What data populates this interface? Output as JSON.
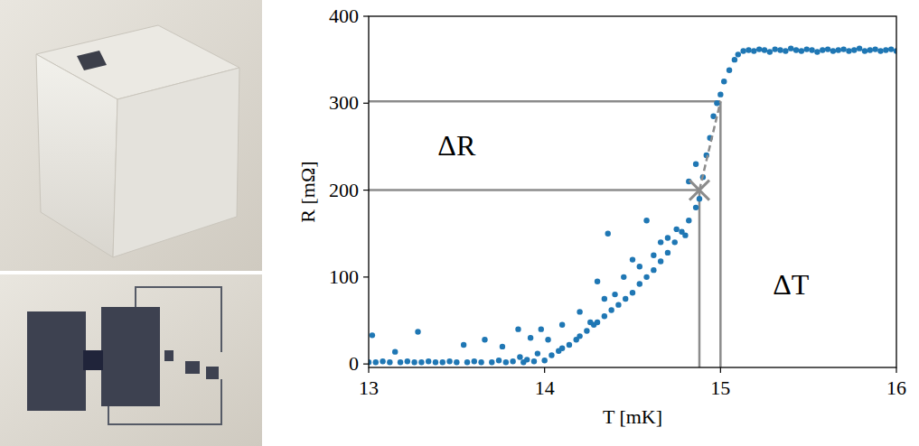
{
  "chart_data": {
    "type": "scatter",
    "x_label": "T [mK]",
    "y_label": "R [mΩ]",
    "xlim": [
      13,
      16
    ],
    "ylim": [
      -4,
      400
    ],
    "xticks": [
      13,
      14,
      15,
      16
    ],
    "yticks": [
      0,
      100,
      200,
      300,
      400
    ],
    "grid": false,
    "x": [
      13.0,
      13.02,
      13.04,
      13.08,
      13.12,
      13.15,
      13.18,
      13.22,
      13.26,
      13.28,
      13.3,
      13.34,
      13.38,
      13.42,
      13.46,
      13.5,
      13.54,
      13.56,
      13.6,
      13.64,
      13.66,
      13.7,
      13.74,
      13.76,
      13.78,
      13.82,
      13.85,
      13.86,
      13.88,
      13.9,
      13.92,
      13.94,
      13.96,
      13.98,
      14.0,
      14.02,
      14.04,
      14.08,
      14.1,
      14.14,
      14.18,
      14.2,
      14.24,
      14.28,
      14.3,
      14.34,
      14.38,
      14.42,
      14.46,
      14.5,
      14.54,
      14.58,
      14.62,
      14.66,
      14.7,
      14.74,
      14.78,
      14.82,
      14.86,
      14.1,
      14.2,
      14.26,
      14.3,
      14.34,
      14.36,
      14.4,
      14.45,
      14.5,
      14.54,
      14.58,
      14.62,
      14.66,
      14.7,
      14.75,
      14.8,
      14.82,
      14.86,
      14.88,
      14.9,
      14.92,
      14.94,
      14.96,
      14.98,
      15.0,
      15.02,
      15.05,
      15.08,
      15.1,
      15.13,
      15.16,
      15.19,
      15.22,
      15.25,
      15.28,
      15.31,
      15.34,
      15.37,
      15.4,
      15.43,
      15.46,
      15.49,
      15.52,
      15.55,
      15.58,
      15.61,
      15.64,
      15.67,
      15.7,
      15.73,
      15.76,
      15.79,
      15.82,
      15.85,
      15.88,
      15.91,
      15.94,
      15.97,
      16.0
    ],
    "series": [
      {
        "name": "R",
        "color": "#1f77b4",
        "marker": "circle",
        "values": [
          2,
          33,
          2,
          3,
          2,
          14,
          2,
          3,
          2,
          37,
          2,
          3,
          2,
          2,
          3,
          2,
          22,
          2,
          3,
          2,
          28,
          2,
          4,
          20,
          2,
          3,
          40,
          8,
          2,
          5,
          30,
          3,
          12,
          40,
          4,
          28,
          10,
          15,
          18,
          22,
          28,
          32,
          38,
          45,
          48,
          55,
          62,
          68,
          75,
          82,
          92,
          100,
          108,
          118,
          128,
          140,
          152,
          165,
          180,
          45,
          60,
          48,
          95,
          75,
          150,
          80,
          100,
          120,
          112,
          165,
          125,
          140,
          145,
          155,
          148,
          210,
          230,
          190,
          215,
          240,
          260,
          285,
          300,
          310,
          325,
          338,
          350,
          356,
          360,
          361,
          360,
          362,
          361,
          359,
          362,
          361,
          360,
          363,
          361,
          360,
          362,
          361,
          359,
          361,
          362,
          360,
          361,
          362,
          360,
          361,
          363,
          360,
          361,
          362,
          360,
          361,
          362,
          360
        ]
      }
    ],
    "operating_point": {
      "x": 14.88,
      "y": 200
    },
    "upper_point": {
      "x": 15.0,
      "y": 302
    },
    "annotations": [
      {
        "text": "ΔR",
        "x": 13.5,
        "y": 240
      },
      {
        "text": "ΔT",
        "x": 15.4,
        "y": 80
      }
    ]
  }
}
